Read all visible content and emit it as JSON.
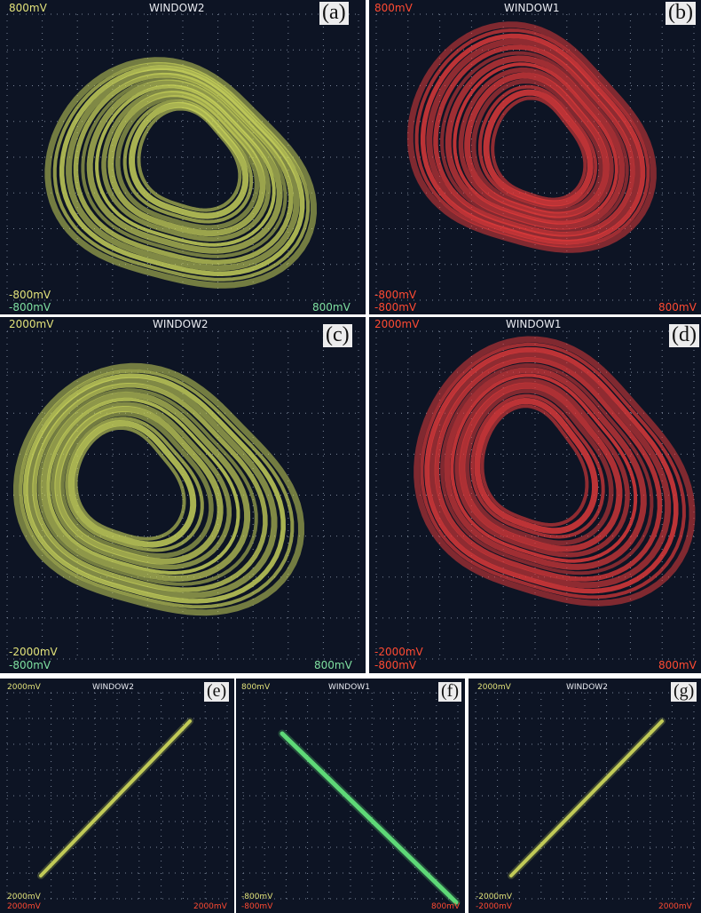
{
  "colors": {
    "yellow_trace": "#c8d25a",
    "red_trace": "#e03a3a",
    "green_trace": "#62e07a",
    "yellow_label": "#e2e27a",
    "red_label": "#ff4a32",
    "green_label": "#7fe0a0",
    "screen_bg": "#0d1424",
    "grid": "#a8b4c8"
  },
  "panels": [
    {
      "tag": "(a)",
      "window": "WINDOW2",
      "y_top": "800mV",
      "y_bottom": "-800mV",
      "x_left": "-800mV",
      "x_right": "800mV",
      "trace_color": "yellow",
      "y_label_color": "yellow",
      "x_label_color": "green"
    },
    {
      "tag": "(b)",
      "window": "WINDOW1",
      "y_top": "800mV",
      "y_bottom": "-800mV",
      "x_left": "-800mV",
      "x_right": "800mV",
      "trace_color": "red",
      "y_label_color": "red",
      "x_label_color": "red"
    },
    {
      "tag": "(c)",
      "window": "WINDOW2",
      "y_top": "2000mV",
      "y_bottom": "-2000mV",
      "x_left": "-800mV",
      "x_right": "800mV",
      "trace_color": "yellow",
      "y_label_color": "yellow",
      "x_label_color": "green"
    },
    {
      "tag": "(d)",
      "window": "WINDOW1",
      "y_top": "2000mV",
      "y_bottom": "-2000mV",
      "x_left": "-800mV",
      "x_right": "800mV",
      "trace_color": "red",
      "y_label_color": "red",
      "x_label_color": "red"
    },
    {
      "tag": "(e)",
      "window": "WINDOW2",
      "y_top": "2000mV",
      "y_bottom": "2000mV",
      "x_left": "2000mV",
      "x_right": "2000mV",
      "trace_color": "yellow",
      "y_label_color": "yellow",
      "x_label_color": "red"
    },
    {
      "tag": "(f)",
      "window": "WINDOW1",
      "y_top": "800mV",
      "y_bottom": "-800mV",
      "x_left": "-800mV",
      "x_right": "800mV",
      "trace_color": "green",
      "y_label_color": "yellow",
      "x_label_color": "red"
    },
    {
      "tag": "(g)",
      "window": "WINDOW2",
      "y_top": "2000mV",
      "y_bottom": "-2000mV",
      "x_left": "-2000mV",
      "x_right": "2000mV",
      "trace_color": "yellow",
      "y_label_color": "yellow",
      "x_label_color": "red"
    }
  ]
}
